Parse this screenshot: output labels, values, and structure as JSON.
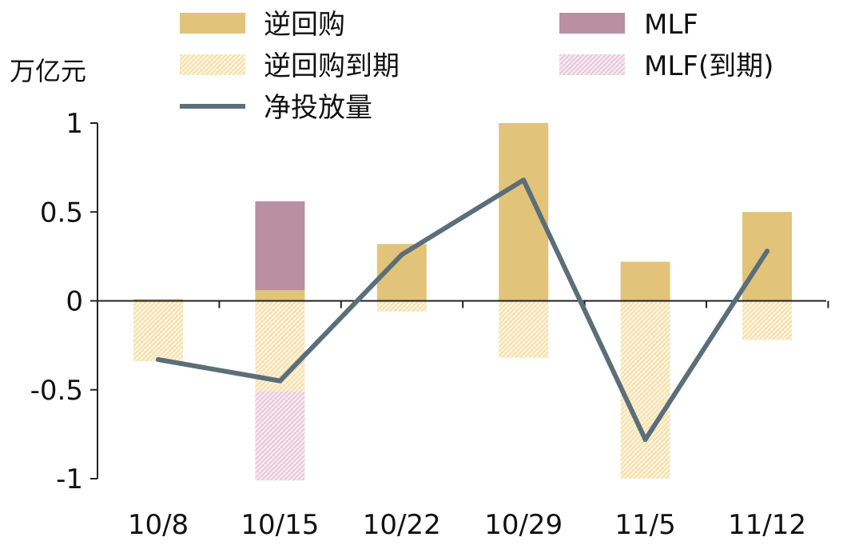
{
  "chart_data": {
    "type": "bar",
    "unit_label": "万亿元",
    "categories": [
      "10/8",
      "10/15",
      "10/22",
      "10/29",
      "11/5",
      "11/12"
    ],
    "ylim": [
      -1,
      1
    ],
    "yticks": [
      1,
      0.5,
      0,
      -0.5,
      -1
    ],
    "ytick_labels": [
      "1",
      "0.5",
      "0",
      "-0.5",
      "-1"
    ],
    "grid": false,
    "legend_position": "top",
    "series": [
      {
        "name": "逆回购",
        "kind": "bar",
        "values": [
          0.01,
          0.06,
          0.32,
          1.0,
          0.22,
          0.5
        ],
        "color": "#e2c37a"
      },
      {
        "name": "MLF",
        "kind": "bar",
        "values": [
          0,
          0.5,
          0,
          0,
          0,
          0
        ],
        "color": "#b98fa2"
      },
      {
        "name": "逆回购到期",
        "kind": "bar-hatched",
        "values": [
          -0.34,
          -0.51,
          -0.06,
          -0.32,
          -1.0,
          -0.22
        ],
        "color": "#f3dfa6"
      },
      {
        "name": "MLF(到期)",
        "kind": "bar-hatched",
        "values": [
          0,
          -0.5,
          0,
          0,
          0,
          0
        ],
        "color": "#e3bfd0"
      },
      {
        "name": "净投放量",
        "kind": "line",
        "values": [
          -0.33,
          -0.45,
          0.26,
          0.68,
          -0.78,
          0.28
        ],
        "color": "#5b6e79"
      }
    ]
  }
}
